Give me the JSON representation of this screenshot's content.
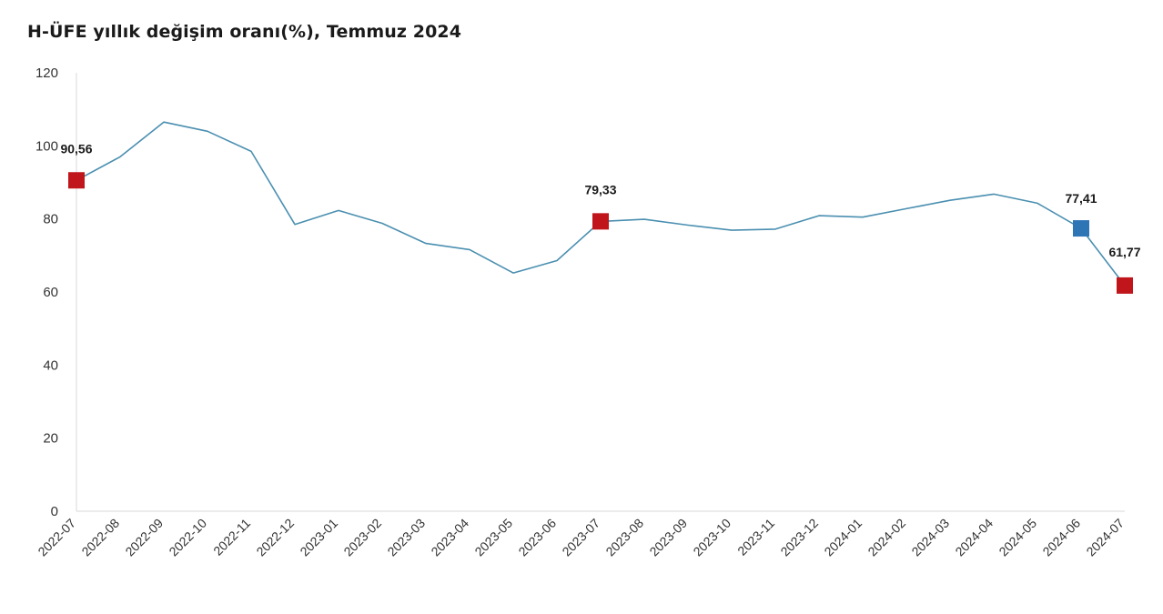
{
  "chart_data": {
    "type": "line",
    "title": "H-ÜFE yıllık değişim oranı(%), Temmuz 2024",
    "xlabel": "",
    "ylabel": "",
    "ylim": [
      0,
      120
    ],
    "yticks": [
      0,
      20,
      40,
      60,
      80,
      100,
      120
    ],
    "categories": [
      "2022-07",
      "2022-08",
      "2022-09",
      "2022-10",
      "2022-11",
      "2022-12",
      "2023-01",
      "2023-02",
      "2023-03",
      "2023-04",
      "2023-05",
      "2023-06",
      "2023-07",
      "2023-08",
      "2023-09",
      "2023-10",
      "2023-11",
      "2023-12",
      "2024-01",
      "2024-02",
      "2024-03",
      "2024-04",
      "2024-05",
      "2024-06",
      "2024-07"
    ],
    "series": [
      {
        "name": "H-ÜFE yıllık değişim oranı",
        "color": "#4a8fb0",
        "values": [
          90.56,
          97.0,
          106.5,
          104.0,
          98.5,
          78.5,
          82.3,
          78.8,
          73.3,
          71.6,
          65.2,
          68.6,
          79.33,
          79.9,
          78.3,
          76.9,
          77.2,
          80.9,
          80.5,
          82.8,
          85.1,
          86.8,
          84.3,
          77.41,
          61.77
        ]
      }
    ],
    "highlights": [
      {
        "index": 0,
        "label": "90,56",
        "color": "#c0151b"
      },
      {
        "index": 12,
        "label": "79,33",
        "color": "#c0151b"
      },
      {
        "index": 23,
        "label": "77,41",
        "color": "#2e75b6"
      },
      {
        "index": 24,
        "label": "61,77",
        "color": "#c0151b"
      }
    ],
    "grid": false
  }
}
